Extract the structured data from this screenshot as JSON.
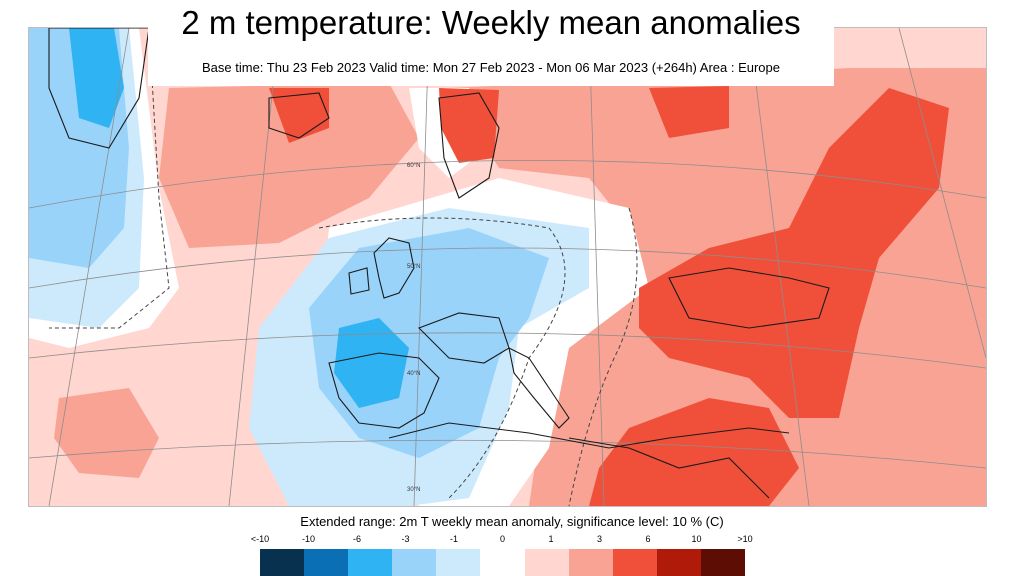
{
  "title": "2 m temperature: Weekly mean anomalies",
  "subtitle": "Base time: Thu 23 Feb 2023 Valid time: Mon 27 Feb 2023 - Mon 06 Mar 2023 (+264h) Area : Europe",
  "legend": {
    "caption": "Extended range: 2m T weekly mean anomaly, significance level: 10 % (C)",
    "labels": [
      "<-10",
      "-10",
      "-6",
      "-3",
      "-1",
      "0",
      "1",
      "3",
      "6",
      "10",
      ">10"
    ],
    "colors": [
      "#08304f",
      "#0a6fb5",
      "#2fb3f2",
      "#9ad3fa",
      "#cdeafd",
      "#ffffff",
      "#ffd6d0",
      "#f9a394",
      "#f0503a",
      "#b01a08",
      "#5e0d05"
    ]
  },
  "map": {
    "latitude_labels": [
      "60°N",
      "50°N",
      "40°N",
      "30°N"
    ]
  }
}
